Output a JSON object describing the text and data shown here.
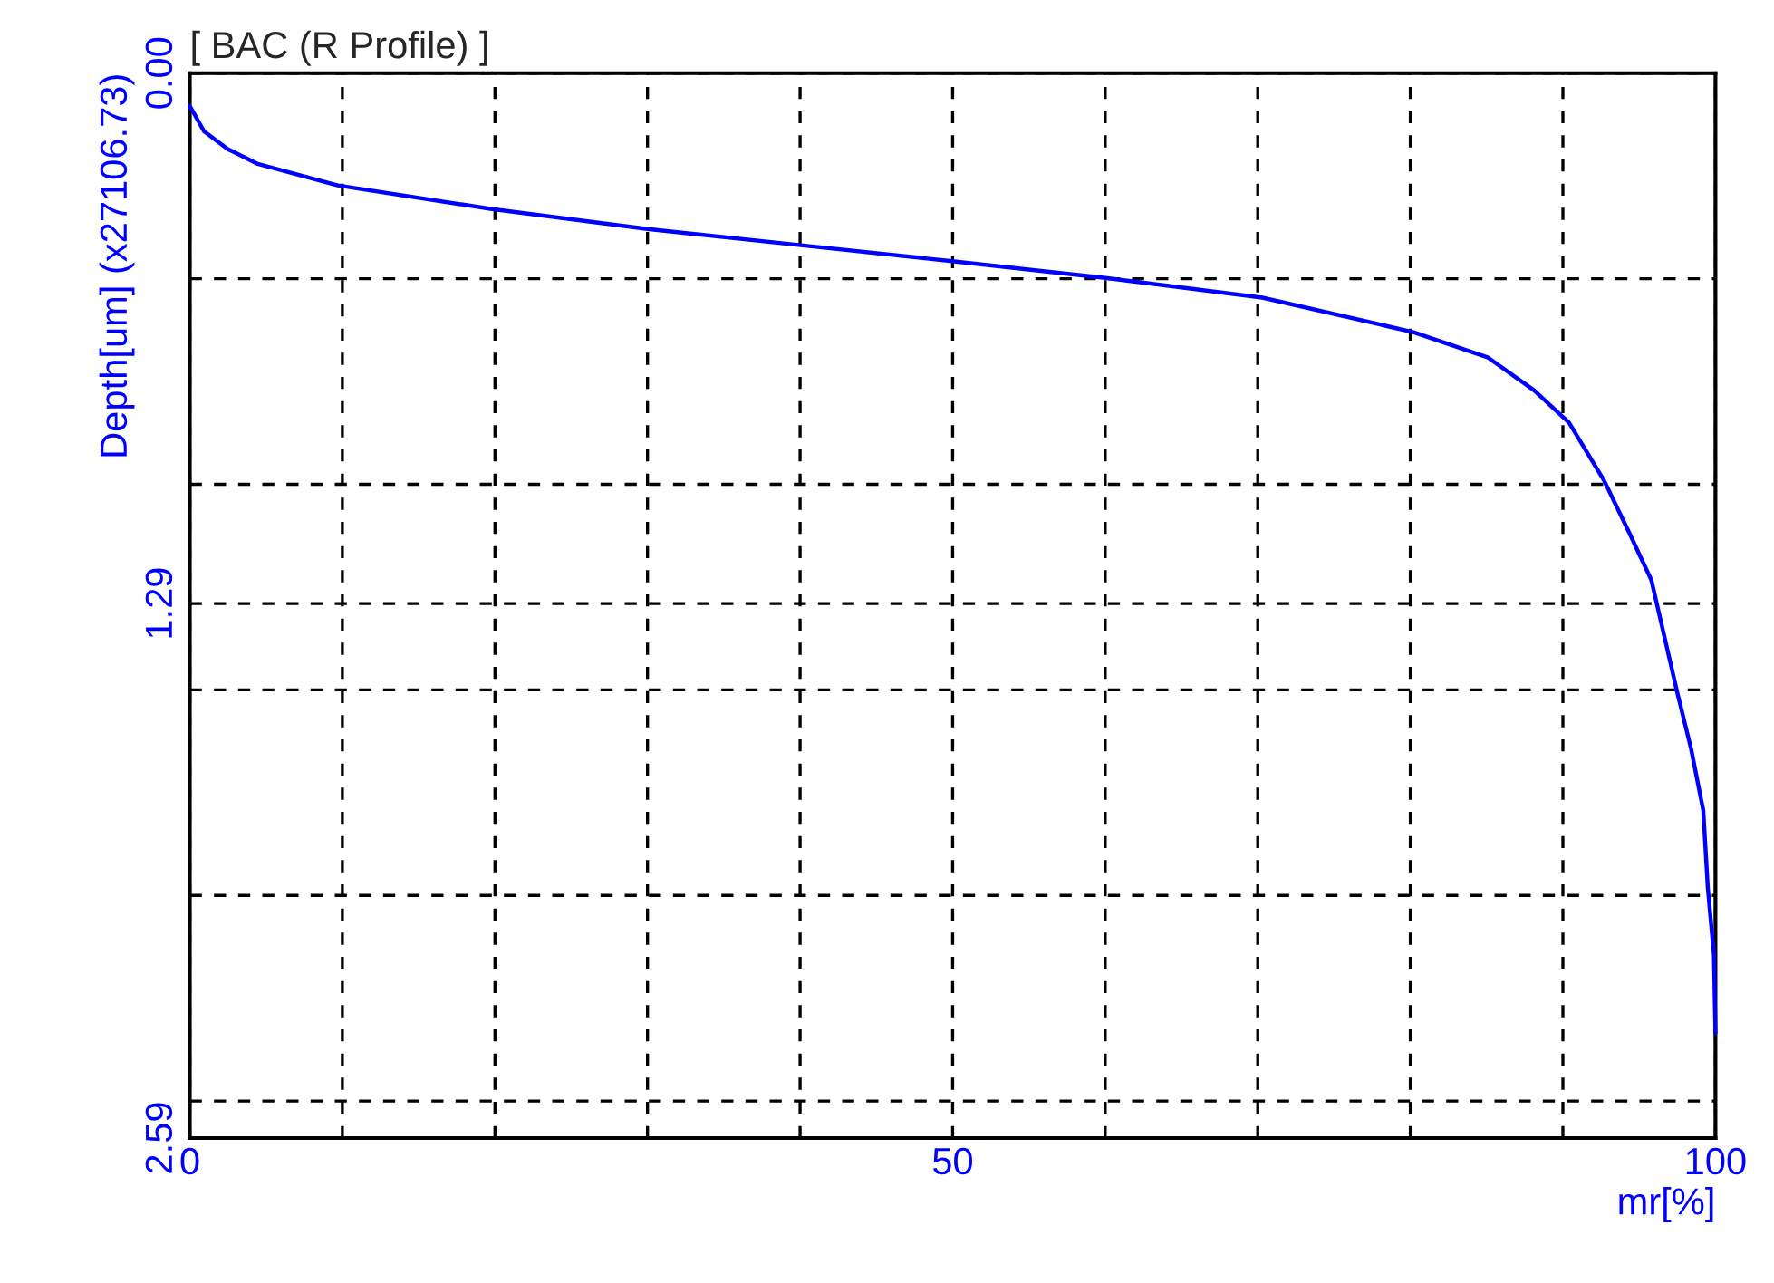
{
  "chart_data": {
    "type": "line",
    "title": "[ BAC (R Profile) ]",
    "xlabel": "mr[%]",
    "ylabel": "Depth[um] (x27106.73)",
    "x": [
      0,
      0.92,
      2.5,
      4.4,
      9.7,
      19.7,
      30.0,
      39.9,
      50.1,
      60.0,
      70.3,
      80.2,
      85.1,
      88.1,
      90.4,
      92.7,
      94.3,
      95.8,
      97.5,
      98.4,
      99.2,
      99.5,
      99.9,
      100
    ],
    "series": [
      {
        "color": "#0000ff",
        "values": [
          0.08,
          0.141,
          0.185,
          0.22,
          0.273,
          0.33,
          0.379,
          0.418,
          0.458,
          0.498,
          0.546,
          0.63,
          0.692,
          0.771,
          0.85,
          0.991,
          1.114,
          1.233,
          1.507,
          1.643,
          1.793,
          1.982,
          2.145,
          2.335
        ]
      }
    ],
    "xlim": [
      0,
      100
    ],
    "xticks": [
      0,
      {
        "value": 10,
        "label": null
      },
      {
        "value": 20,
        "label": null
      },
      {
        "value": 30,
        "label": null
      },
      {
        "value": 40,
        "label": null
      },
      50,
      {
        "value": 60,
        "label": null
      },
      {
        "value": 70,
        "label": null
      },
      {
        "value": 80,
        "label": null
      },
      {
        "value": 90,
        "label": null
      },
      100
    ],
    "ylim": [
      2.59,
      0
    ],
    "yticks": [
      {
        "value": 0,
        "label": "0.00"
      },
      {
        "value": 0.5,
        "label": null
      },
      {
        "value": 1.0,
        "label": null
      },
      {
        "value": 1.29,
        "label": "1.29"
      },
      {
        "value": 1.5,
        "label": null
      },
      {
        "value": 2.0,
        "label": null
      },
      {
        "value": 2.5,
        "label": null
      },
      {
        "value": 2.59,
        "label": "2.59"
      }
    ],
    "grid": true,
    "line_style": "solid"
  }
}
